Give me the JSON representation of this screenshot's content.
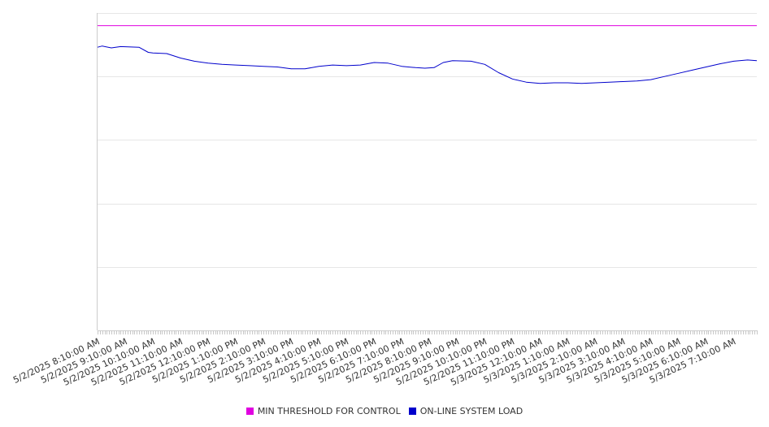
{
  "chart_data": {
    "type": "line",
    "title": "",
    "xlabel": "",
    "ylabel": "",
    "grid": true,
    "legend_position": "bottom-center",
    "x_tick_labels": [
      "5/2/2025 8:10:00 AM",
      "5/2/2025 9:10:00 AM",
      "5/2/2025 10:10:00 AM",
      "5/2/2025 11:10:00 AM",
      "5/2/2025 12:10:00 PM",
      "5/2/2025 1:10:00 PM",
      "5/2/2025 2:10:00 PM",
      "5/2/2025 3:10:00 PM",
      "5/2/2025 4:10:00 PM",
      "5/2/2025 5:10:00 PM",
      "5/2/2025 6:10:00 PM",
      "5/2/2025 7:10:00 PM",
      "5/2/2025 8:10:00 PM",
      "5/2/2025 9:10:00 PM",
      "5/2/2025 10:10:00 PM",
      "5/2/2025 11:10:00 PM",
      "5/3/2025 12:10:00 AM",
      "5/3/2025 1:10:00 AM",
      "5/3/2025 2:10:00 AM",
      "5/3/2025 3:10:00 AM",
      "5/3/2025 4:10:00 AM",
      "5/3/2025 5:10:00 AM",
      "5/3/2025 6:10:00 AM",
      "5/3/2025 7:10:00 AM"
    ],
    "x_start": "5/2/2025 8:10:00 AM",
    "x_end": "5/3/2025 8:00:00 AM",
    "ylim": [
      0,
      5
    ],
    "y_gridlines": [
      1,
      2,
      3,
      4,
      5
    ],
    "series": [
      {
        "name": "MIN THRESHOLD FOR CONTROL",
        "color": "#e000e0",
        "x": [
          "5/2/2025 8:10:00 AM",
          "5/3/2025 8:00:00 AM"
        ],
        "y": [
          4.8,
          4.8
        ]
      },
      {
        "name": "ON-LINE SYSTEM LOAD",
        "color": "#0000cc",
        "x": [
          "5/2/2025 8:10:00 AM",
          "5/2/2025 8:20:00 AM",
          "5/2/2025 8:40:00 AM",
          "5/2/2025 9:00:00 AM",
          "5/2/2025 9:40:00 AM",
          "5/2/2025 10:00:00 AM",
          "5/2/2025 10:10:00 AM",
          "5/2/2025 10:40:00 AM",
          "5/2/2025 11:10:00 AM",
          "5/2/2025 11:40:00 AM",
          "5/2/2025 12:10:00 PM",
          "5/2/2025 12:40:00 PM",
          "5/2/2025 1:10:00 PM",
          "5/2/2025 1:40:00 PM",
          "5/2/2025 2:10:00 PM",
          "5/2/2025 2:40:00 PM",
          "5/2/2025 3:10:00 PM",
          "5/2/2025 3:40:00 PM",
          "5/2/2025 4:10:00 PM",
          "5/2/2025 4:40:00 PM",
          "5/2/2025 5:10:00 PM",
          "5/2/2025 5:40:00 PM",
          "5/2/2025 6:10:00 PM",
          "5/2/2025 6:40:00 PM",
          "5/2/2025 7:10:00 PM",
          "5/2/2025 7:40:00 PM",
          "5/2/2025 8:00:00 PM",
          "5/2/2025 8:20:00 PM",
          "5/2/2025 8:40:00 PM",
          "5/2/2025 9:00:00 PM",
          "5/2/2025 9:40:00 PM",
          "5/2/2025 10:10:00 PM",
          "5/2/2025 10:40:00 PM",
          "5/2/2025 11:10:00 PM",
          "5/2/2025 11:40:00 PM",
          "5/3/2025 12:10:00 AM",
          "5/3/2025 12:40:00 AM",
          "5/3/2025 1:10:00 AM",
          "5/3/2025 1:40:00 AM",
          "5/3/2025 2:10:00 AM",
          "5/3/2025 2:40:00 AM",
          "5/3/2025 3:10:00 AM",
          "5/3/2025 3:40:00 AM",
          "5/3/2025 4:10:00 AM",
          "5/3/2025 4:40:00 AM",
          "5/3/2025 5:10:00 AM",
          "5/3/2025 5:40:00 AM",
          "5/3/2025 6:10:00 AM",
          "5/3/2025 6:40:00 AM",
          "5/3/2025 7:10:00 AM",
          "5/3/2025 7:40:00 AM",
          "5/3/2025 8:00:00 AM"
        ],
        "y": [
          4.46,
          4.48,
          4.45,
          4.47,
          4.46,
          4.38,
          4.37,
          4.36,
          4.29,
          4.24,
          4.21,
          4.19,
          4.18,
          4.17,
          4.16,
          4.15,
          4.12,
          4.12,
          4.16,
          4.18,
          4.17,
          4.18,
          4.22,
          4.21,
          4.16,
          4.14,
          4.13,
          4.14,
          4.22,
          4.25,
          4.24,
          4.19,
          4.06,
          3.96,
          3.91,
          3.89,
          3.9,
          3.9,
          3.89,
          3.9,
          3.91,
          3.92,
          3.93,
          3.95,
          4.0,
          4.05,
          4.1,
          4.15,
          4.2,
          4.24,
          4.26,
          4.25
        ]
      }
    ]
  }
}
